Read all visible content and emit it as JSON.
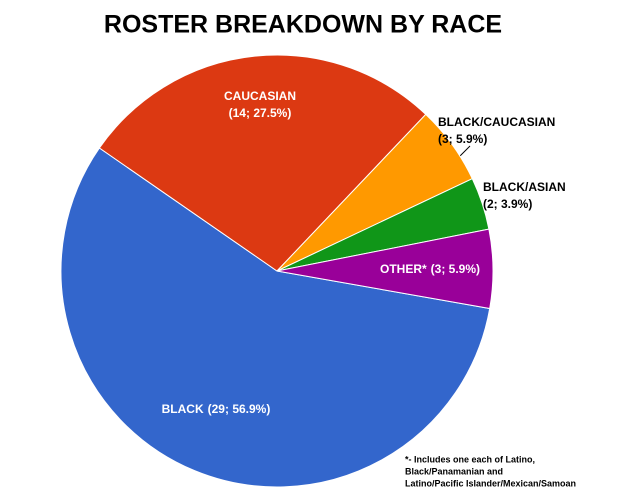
{
  "chart_data": {
    "type": "pie",
    "title": "ROSTER BREAKDOWN BY RACE",
    "categories": [
      "BLACK",
      "CAUCASIAN",
      "BLACK/CAUCASIAN",
      "BLACK/ASIAN",
      "OTHER*"
    ],
    "values": [
      29,
      14,
      3,
      2,
      3
    ],
    "value_labels": [
      "(29; 56.9%)",
      "(14; 27.5%)",
      "(3; 5.9%)",
      "(2; 3.9%)",
      "(3; 5.9%)"
    ],
    "colors": [
      "#3366cc",
      "#dc3912",
      "#ff9900",
      "#109618",
      "#990099"
    ],
    "footnote": [
      "*- Includes one each of Latino,",
      "Black/Panamanian and",
      "Latino/Pacific Islander/Mexican/Samoan"
    ]
  }
}
